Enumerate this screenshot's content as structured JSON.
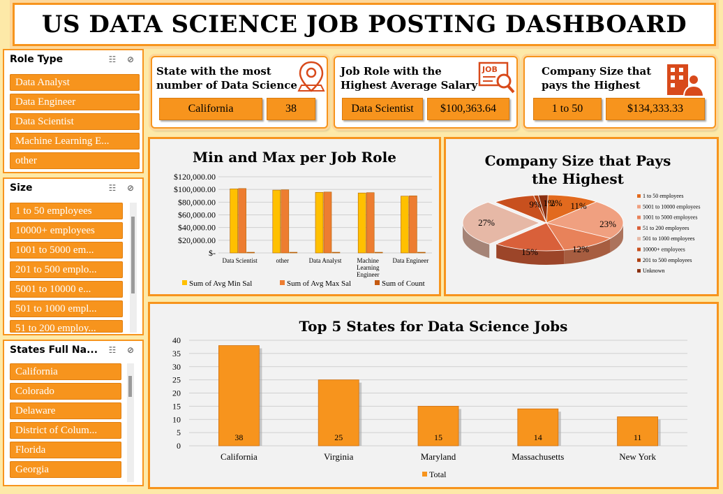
{
  "title": "US DATA SCIENCE JOB POSTING DASHBOARD",
  "slicers": {
    "role": {
      "title": "Role Type",
      "items": [
        "Data Analyst",
        "Data Engineer",
        "Data Scientist",
        "Machine Learning E...",
        "other"
      ]
    },
    "size": {
      "title": "Size",
      "items": [
        "1 to 50 employees",
        "10000+ employees",
        "1001 to 5000 em...",
        "201 to 500 emplo...",
        "5001 to 10000 e...",
        "501 to 1000 empl...",
        "51 to 200 employ..."
      ]
    },
    "states": {
      "title": "States Full Na...",
      "items": [
        "California",
        "Colorado",
        "Delaware",
        "District of Colum...",
        "Florida",
        "Georgia"
      ]
    },
    "icons": {
      "multiselect": "multi-select-icon",
      "clear": "clear-filter-icon"
    }
  },
  "kpis": {
    "state": {
      "title_line1": "State with the most",
      "title_line2": "number of Data Science",
      "value1": "California",
      "value2": "38",
      "icon": "location-pin-icon"
    },
    "role": {
      "title_line1": "Job Role with the",
      "title_line2": "Highest Average Salary",
      "value1": "Data Scientist",
      "value2": "$100,363.64",
      "icon": "job-search-icon",
      "icon_text": "JOB"
    },
    "company": {
      "title_line1": "Company Size that",
      "title_line2": "pays the Highest",
      "value1": "1 to 50",
      "value2": "$134,333.33",
      "icon": "company-building-icon"
    }
  },
  "colors": {
    "accent": "#f7941d",
    "min_sal": "#ffc000",
    "max_sal": "#ed7d31",
    "background": "#fde9a8"
  },
  "minmax": {
    "title": "Min and Max per Job Role",
    "chart_data": {
      "type": "bar",
      "categories": [
        "Data Scientist",
        "other",
        "Data Analyst",
        "Machine Learning Engineer",
        "Data Engineer"
      ],
      "yticks": [
        "$120,000.00",
        "$100,000.00",
        "$80,000.00",
        "$60,000.00",
        "$40,000.00",
        "$20,000.00",
        "$-"
      ],
      "ylim": [
        0,
        120000
      ],
      "series": [
        {
          "name": "Sum of Avg Min Sal",
          "values": [
            101000,
            99000,
            95500,
            94500,
            89500
          ]
        },
        {
          "name": "Sum of Avg Max Sal",
          "values": [
            101500,
            99500,
            96000,
            95000,
            90000
          ]
        },
        {
          "name": "Sum of Count",
          "values": [
            11,
            10,
            9,
            8,
            6
          ]
        }
      ],
      "legend": "bottom"
    }
  },
  "pie": {
    "title_line1": "Company Size that Pays",
    "title_line2": "the Highest",
    "chart_data": {
      "type": "pie",
      "labels": [
        "1 to 50 employees",
        "5001 to 10000 employees",
        "1001 to 5000 employees",
        "51 to 200 employees",
        "501 to 1000 employees",
        "10000+ employees",
        "201 to 500 employees",
        "Unknown"
      ],
      "values": [
        11,
        23,
        12,
        15,
        27,
        9,
        1,
        2
      ],
      "value_labels": [
        "11%",
        "23%",
        "12%",
        "15%",
        "27%",
        "9%",
        "1%",
        "2%"
      ],
      "colors": [
        "#e26a1e",
        "#f0a080",
        "#e8825a",
        "#d9603a",
        "#e6b8a6",
        "#c8501e",
        "#b04010",
        "#8a3010"
      ],
      "legend": "right"
    }
  },
  "states_chart": {
    "title": "Top 5 States for Data Science Jobs",
    "chart_data": {
      "type": "bar",
      "categories": [
        "California",
        "Virginia",
        "Maryland",
        "Massachusetts",
        "New York"
      ],
      "values": [
        38,
        25,
        15,
        14,
        11
      ],
      "data_labels": [
        "38",
        "25",
        "15",
        "14",
        "11"
      ],
      "yticks": [
        "40",
        "35",
        "30",
        "25",
        "20",
        "15",
        "10",
        "5",
        "0"
      ],
      "ylim": [
        0,
        40
      ],
      "series_name": "Total",
      "legend": "bottom"
    }
  }
}
